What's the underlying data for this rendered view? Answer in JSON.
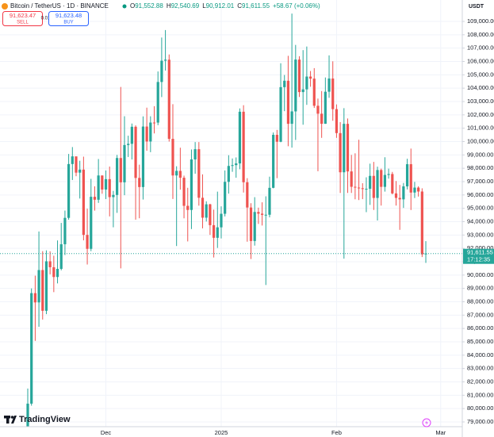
{
  "header": {
    "symbol": "Bitcoin / TetherUS · 1D · BINANCE",
    "ohlc": [
      {
        "key": "O",
        "value": "91,552.88"
      },
      {
        "key": "H",
        "value": "92,540.69"
      },
      {
        "key": "L",
        "value": "90,912.01"
      },
      {
        "key": "C",
        "value": "91,611.55"
      }
    ],
    "change": "+58.67 (+0.06%)",
    "sell": {
      "price": "91,623.47",
      "label": "SELL"
    },
    "spread": "0.01",
    "buy": {
      "price": "91,623.48",
      "label": "BUY"
    },
    "currency": "USDT",
    "logo": "TradingView"
  },
  "chart_data": {
    "type": "candlestick",
    "up_color": "#26a69a",
    "down_color": "#ef5350",
    "grid": true,
    "open": [
      76677,
      80370,
      88647,
      87952,
      90375,
      87325,
      91032,
      90587,
      89855,
      90464,
      92310,
      94286,
      98317,
      98892,
      97672,
      97900,
      93010,
      91965,
      95863,
      95643,
      97460,
      96407,
      97185,
      95840,
      96002,
      98768,
      96947,
      99740,
      99831,
      101109,
      97276,
      96593,
      101125,
      100005,
      101424,
      101421,
      104463,
      106058,
      106133,
      100204,
      97461,
      97805,
      97291,
      95186,
      94878,
      98663,
      99429,
      95791,
      94299,
      95300,
      93738,
      92792,
      93576,
      94591,
      96984,
      98174,
      98236,
      98363,
      102235,
      96954,
      95060,
      92552,
      94726,
      94599,
      94511,
      94519,
      96534,
      100505,
      99987,
      104077,
      104556,
      101331,
      102260,
      106143,
      103706,
      103910,
      104870,
      104714,
      102682,
      102087,
      101332,
      103733,
      104722,
      102429,
      100635,
      97700,
      101328,
      97763,
      96612,
      96554,
      96506,
      96444,
      96463,
      97430,
      95778,
      97869,
      96608,
      97500,
      97570,
      96118,
      95780,
      95671,
      96644,
      98305,
      96181,
      96551,
      96258,
      91552.88
    ],
    "high": [
      81500,
      89000,
      89956,
      93265,
      91790,
      91850,
      91779,
      91449,
      92594,
      93905,
      94831,
      99073,
      99588,
      98767,
      98564,
      98871,
      94973,
      97208,
      96650,
      98693,
      97463,
      97836,
      98130,
      96305,
      99000,
      104088,
      101898,
      100439,
      101350,
      101215,
      98270,
      101888,
      102540,
      101895,
      102650,
      105250,
      107793,
      108353,
      106524,
      102800,
      98150,
      99540,
      97448,
      96538,
      99406,
      99963,
      99963,
      97544,
      95525,
      95340,
      94903,
      96250,
      95149,
      97839,
      98976,
      98734,
      98813,
      102482,
      102724,
      97258,
      95382,
      95836,
      95050,
      95450,
      95900,
      97371,
      100681,
      100873,
      105865,
      104988,
      106422,
      109588,
      107240,
      106394,
      106850,
      107120,
      105286,
      105500,
      103221,
      103783,
      104800,
      106457,
      106012,
      102783,
      101456,
      102500,
      101730,
      99000,
      99120,
      100137,
      96880,
      97323,
      98345,
      98477,
      98119,
      97975,
      98826,
      97972,
      97726,
      97046,
      96753,
      96899,
      98711,
      99475,
      96980,
      96650,
      96500,
      92540.69
    ],
    "low": [
      76500,
      80216,
      85072,
      86127,
      86668,
      87073,
      90056,
      88722,
      89376,
      90357,
      91500,
      94145,
      97122,
      97404,
      95734,
      92600,
      90791,
      91792,
      94827,
      95407,
      96092,
      95693,
      94395,
      93578,
      94659,
      90500,
      95982,
      98844,
      98657,
      94150,
      94256,
      95658,
      99311,
      99205,
      100610,
      101227,
      103333,
      105321,
      100000,
      95700,
      92175,
      96398,
      94250,
      92520,
      93448,
      97593,
      95199,
      93500,
      94014,
      93009,
      91317,
      92033,
      92743,
      94392,
      96100,
      97735,
      97291,
      97926,
      96181,
      92500,
      91203,
      92206,
      93831,
      93711,
      89256,
      94322,
      96500,
      97257,
      99950,
      102277,
      99651,
      99550,
      100119,
      103339,
      101262,
      102750,
      104106,
      102520,
      97777,
      100279,
      101328,
      103278,
      101560,
      100279,
      96150,
      91231,
      96150,
      96150,
      95676,
      95620,
      95688,
      94713,
      95256,
      94876,
      94088,
      95205,
      96252,
      97223,
      96046,
      95205,
      93388,
      95029,
      96415,
      94871,
      95770,
      95880,
      91350,
      90912.01
    ],
    "close": [
      80370,
      88647,
      87952,
      90375,
      87325,
      91032,
      90587,
      89855,
      90464,
      92310,
      94286,
      98317,
      98892,
      97672,
      97900,
      93010,
      91965,
      95863,
      95643,
      97460,
      96407,
      97185,
      95840,
      96002,
      98768,
      96947,
      99740,
      99831,
      101109,
      97276,
      96593,
      101125,
      100005,
      101424,
      101421,
      104463,
      106058,
      106133,
      100204,
      97461,
      97805,
      97291,
      95186,
      94878,
      98663,
      99429,
      95791,
      94299,
      95300,
      93738,
      92792,
      93576,
      94591,
      96984,
      98174,
      98236,
      98363,
      102235,
      96954,
      95060,
      92552,
      94726,
      94599,
      94511,
      94519,
      96534,
      100505,
      99987,
      104077,
      104556,
      101331,
      102260,
      106143,
      103706,
      103910,
      104870,
      104714,
      102682,
      102087,
      101332,
      103733,
      104722,
      102429,
      100635,
      97700,
      101328,
      97763,
      96612,
      96554,
      96506,
      96444,
      96463,
      97430,
      95778,
      97869,
      96608,
      97500,
      97570,
      96118,
      95780,
      95671,
      96644,
      98305,
      96181,
      96551,
      96258,
      91552.88,
      91611.55
    ],
    "xlim": [
      -7.46,
      116.8
    ],
    "xticks": [
      {
        "value": 21,
        "label": "Dec"
      },
      {
        "value": 52,
        "label": "2025"
      },
      {
        "value": 83,
        "label": "Feb"
      },
      {
        "value": 111,
        "label": "Mar"
      }
    ],
    "ylim": [
      78643,
      110604
    ],
    "yticks": [
      {
        "value": 79000,
        "label": "79,000.00"
      },
      {
        "value": 80000,
        "label": "80,000.00"
      },
      {
        "value": 81000,
        "label": "81,000.00"
      },
      {
        "value": 82000,
        "label": "82,000.00"
      },
      {
        "value": 83000,
        "label": "83,000.00"
      },
      {
        "value": 84000,
        "label": "84,000.00"
      },
      {
        "value": 85000,
        "label": "85,000.00"
      },
      {
        "value": 86000,
        "label": "86,000.00"
      },
      {
        "value": 87000,
        "label": "87,000.00"
      },
      {
        "value": 88000,
        "label": "88,000.00"
      },
      {
        "value": 89000,
        "label": "89,000.00"
      },
      {
        "value": 90000,
        "label": "90,000.00"
      },
      {
        "value": 91000,
        "label": "91,000.00"
      },
      {
        "value": 92000,
        "label": "92,000.00"
      },
      {
        "value": 93000,
        "label": "93,000.00"
      },
      {
        "value": 94000,
        "label": "94,000.00"
      },
      {
        "value": 95000,
        "label": "95,000.00"
      },
      {
        "value": 96000,
        "label": "96,000.00"
      },
      {
        "value": 97000,
        "label": "97,000.00"
      },
      {
        "value": 98000,
        "label": "98,000.00"
      },
      {
        "value": 99000,
        "label": "99,000.00"
      },
      {
        "value": 100000,
        "label": "100,000.00"
      },
      {
        "value": 101000,
        "label": "101,000.00"
      },
      {
        "value": 102000,
        "label": "102,000.00"
      },
      {
        "value": 103000,
        "label": "103,000.00"
      },
      {
        "value": 104000,
        "label": "104,000.00"
      },
      {
        "value": 105000,
        "label": "105,000.00"
      },
      {
        "value": 106000,
        "label": "106,000.00"
      },
      {
        "value": 107000,
        "label": "107,000.00"
      },
      {
        "value": 108000,
        "label": "108,000.00"
      },
      {
        "value": 109000,
        "label": "109,000.00"
      }
    ],
    "last_price": {
      "value": 91611.55,
      "label": "91,611.55"
    },
    "countdown": "17:12:35"
  }
}
